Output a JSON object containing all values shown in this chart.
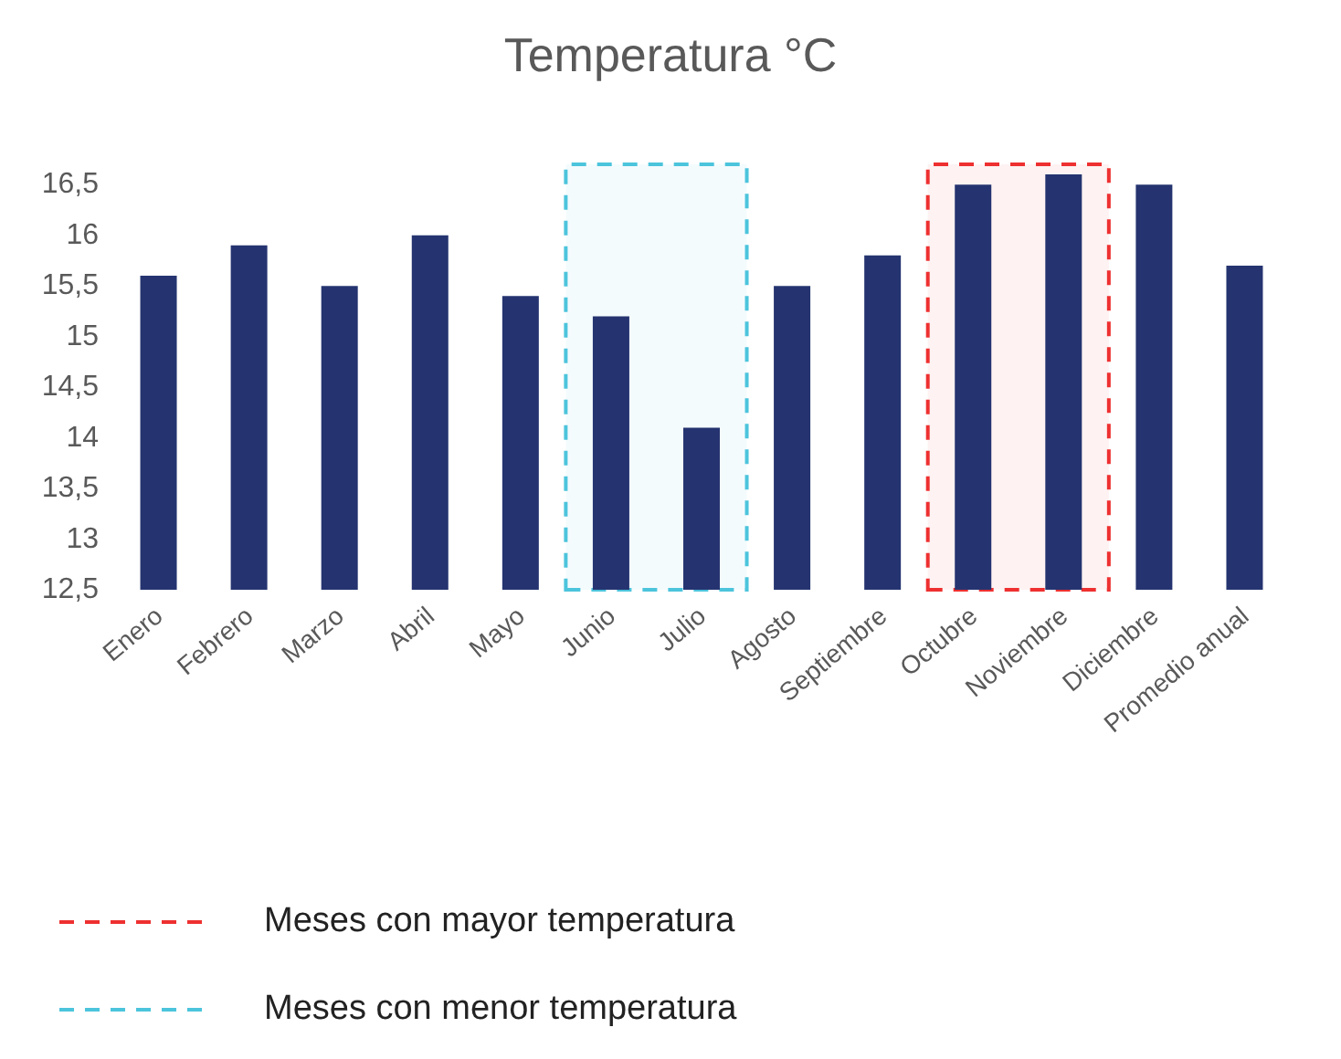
{
  "chart_data": {
    "type": "bar",
    "title": "Temperatura °C",
    "categories": [
      "Enero",
      "Febrero",
      "Marzo",
      "Abril",
      "Mayo",
      "Junio",
      "Julio",
      "Agosto",
      "Septiembre",
      "Octubre",
      "Noviembre",
      "Diciembre",
      "Promedio anual"
    ],
    "values": [
      15.6,
      15.9,
      15.5,
      16.0,
      15.4,
      15.2,
      14.1,
      15.5,
      15.8,
      16.5,
      16.6,
      16.5,
      15.7
    ],
    "color": "#253470",
    "ylim": [
      12.5,
      16.7
    ],
    "yticks": [
      {
        "value": 12.5,
        "label": "12,5"
      },
      {
        "value": 13,
        "label": "13"
      },
      {
        "value": 13.5,
        "label": "13,5"
      },
      {
        "value": 14,
        "label": "14"
      },
      {
        "value": 14.5,
        "label": "14,5"
      },
      {
        "value": 15,
        "label": "15"
      },
      {
        "value": 15.5,
        "label": "15,5"
      },
      {
        "value": 16,
        "label": "16"
      },
      {
        "value": 16.5,
        "label": "16,5"
      }
    ],
    "grid": false,
    "legend": "bottom left",
    "bands": [
      {
        "axis": "x",
        "from": "Octubre",
        "to": "Noviembre",
        "label": "Meses con mayor temperatura",
        "color": "#ee3030"
      },
      {
        "axis": "x",
        "from": "Junio",
        "to": "Julio",
        "label": "Meses con menor temperatura",
        "color": "#4cc4dc"
      }
    ]
  }
}
